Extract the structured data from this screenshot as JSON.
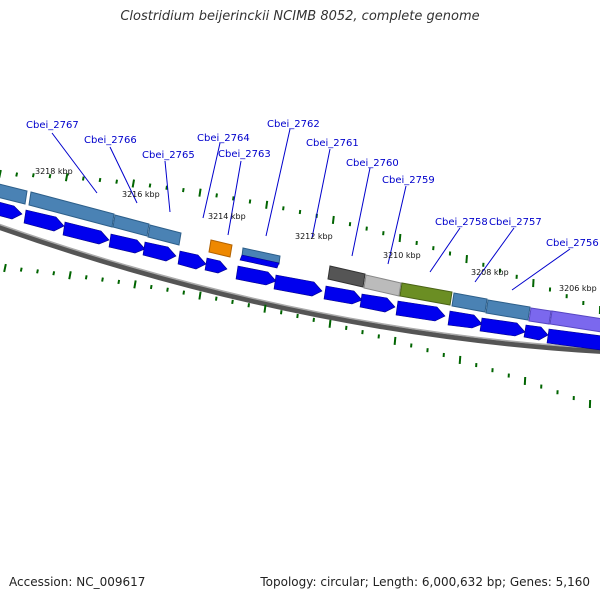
{
  "title": "Clostridium beijerinckii NCIMB 8052, complete genome",
  "footer": {
    "accession": "Accession: NC_009617",
    "summary": "Topology: circular; Length: 6,000,632 bp; Genes: 5,160"
  },
  "tick_labels": [
    "3218 kbp",
    "3216 kbp",
    "3214 kbp",
    "3212 kbp",
    "3210 kbp",
    "3208 kbp",
    "3206 kbp"
  ],
  "gene_labels": [
    "Cbei_2767",
    "Cbei_2766",
    "Cbei_2765",
    "Cbei_2764",
    "Cbei_2763",
    "Cbei_2762",
    "Cbei_2761",
    "Cbei_2760",
    "Cbei_2759",
    "Cbei_2758",
    "Cbei_2757",
    "Cbei_2756"
  ],
  "colors": {
    "cds_arrow": "#0000ee",
    "feature_steelblue": "#4a82b4",
    "feature_orange": "#ee8800",
    "feature_darkgray": "#555555",
    "feature_lightgray": "#bbbbbb",
    "feature_olive": "#6b8e23",
    "feature_purple": "#7b68ee",
    "tick_green": "#006400",
    "backbone": "#777777",
    "label_blue": "#0000cc"
  }
}
